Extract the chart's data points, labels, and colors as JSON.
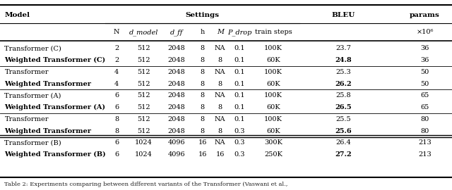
{
  "caption": "Table 2: Experiments comparing between different variants of the Transformer (Vaswani et al.,",
  "rows": [
    {
      "model": "Transformer (C)",
      "bold": false,
      "N": "2",
      "d_model": "512",
      "d_ff": "2048",
      "h": "8",
      "M": "NA",
      "P_drop": "0.1",
      "train_steps": "100K",
      "BLEU": "23.7",
      "BLEU_bold": false,
      "params": "36"
    },
    {
      "model": "Weighted Transformer (C)",
      "bold": true,
      "N": "2",
      "d_model": "512",
      "d_ff": "2048",
      "h": "8",
      "M": "8",
      "P_drop": "0.1",
      "train_steps": "60K",
      "BLEU": "24.8",
      "BLEU_bold": true,
      "params": "36"
    },
    {
      "model": "Transformer",
      "bold": false,
      "N": "4",
      "d_model": "512",
      "d_ff": "2048",
      "h": "8",
      "M": "NA",
      "P_drop": "0.1",
      "train_steps": "100K",
      "BLEU": "25.3",
      "BLEU_bold": false,
      "params": "50"
    },
    {
      "model": "Weighted Transformer",
      "bold": true,
      "N": "4",
      "d_model": "512",
      "d_ff": "2048",
      "h": "8",
      "M": "8",
      "P_drop": "0.1",
      "train_steps": "60K",
      "BLEU": "26.2",
      "BLEU_bold": true,
      "params": "50"
    },
    {
      "model": "Transformer (A)",
      "bold": false,
      "N": "6",
      "d_model": "512",
      "d_ff": "2048",
      "h": "8",
      "M": "NA",
      "P_drop": "0.1",
      "train_steps": "100K",
      "BLEU": "25.8",
      "BLEU_bold": false,
      "params": "65"
    },
    {
      "model": "Weighted Transformer (A)",
      "bold": true,
      "N": "6",
      "d_model": "512",
      "d_ff": "2048",
      "h": "8",
      "M": "8",
      "P_drop": "0.1",
      "train_steps": "60K",
      "BLEU": "26.5",
      "BLEU_bold": true,
      "params": "65"
    },
    {
      "model": "Transformer",
      "bold": false,
      "N": "8",
      "d_model": "512",
      "d_ff": "2048",
      "h": "8",
      "M": "NA",
      "P_drop": "0.1",
      "train_steps": "100K",
      "BLEU": "25.5",
      "BLEU_bold": false,
      "params": "80"
    },
    {
      "model": "Weighted Transformer",
      "bold": true,
      "N": "8",
      "d_model": "512",
      "d_ff": "2048",
      "h": "8",
      "M": "8",
      "P_drop": "0.3",
      "train_steps": "60K",
      "BLEU": "25.6",
      "BLEU_bold": true,
      "params": "80"
    },
    {
      "model": "Transformer (B)",
      "bold": false,
      "N": "6",
      "d_model": "1024",
      "d_ff": "4096",
      "h": "16",
      "M": "NA",
      "P_drop": "0.3",
      "train_steps": "300K",
      "BLEU": "26.4",
      "BLEU_bold": false,
      "params": "213"
    },
    {
      "model": "Weighted Transformer (B)",
      "bold": true,
      "N": "6",
      "d_model": "1024",
      "d_ff": "4096",
      "h": "16",
      "M": "16",
      "P_drop": "0.3",
      "train_steps": "250K",
      "BLEU": "27.2",
      "BLEU_bold": true,
      "params": "213"
    }
  ],
  "bg_color": "#ffffff",
  "font_size": 7.5
}
